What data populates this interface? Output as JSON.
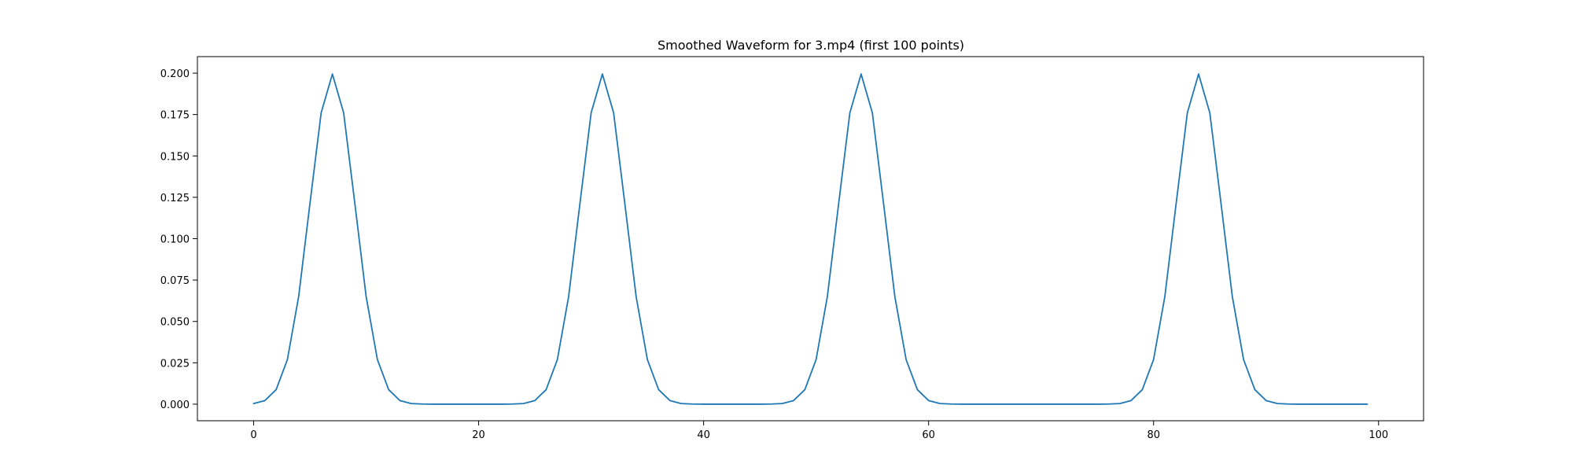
{
  "chart_data": {
    "type": "line",
    "title": "Smoothed Waveform for 3.mp4 (first 100 points)",
    "xlabel": "",
    "ylabel": "",
    "xlim": [
      -5,
      104
    ],
    "ylim": [
      -0.01,
      0.21
    ],
    "xticks": [
      0,
      20,
      40,
      60,
      80,
      100
    ],
    "xtick_labels": [
      "0",
      "20",
      "40",
      "60",
      "80",
      "100"
    ],
    "yticks": [
      0.0,
      0.025,
      0.05,
      0.075,
      0.1,
      0.125,
      0.15,
      0.175,
      0.2
    ],
    "ytick_labels": [
      "0.000",
      "0.025",
      "0.050",
      "0.075",
      "0.100",
      "0.125",
      "0.150",
      "0.175",
      "0.200"
    ],
    "grid": false,
    "legend": "none",
    "line_color": "#1f77b4",
    "series": [
      {
        "x": [
          0,
          1,
          2,
          3,
          4,
          5,
          6,
          7,
          8,
          9,
          10,
          11,
          12,
          13,
          14,
          15,
          16,
          17,
          18,
          19,
          20,
          21,
          22,
          23,
          24,
          25,
          26,
          27,
          28,
          29,
          30,
          31,
          32,
          33,
          34,
          35,
          36,
          37,
          38,
          39,
          40,
          41,
          42,
          43,
          44,
          45,
          46,
          47,
          48,
          49,
          50,
          51,
          52,
          53,
          54,
          55,
          56,
          57,
          58,
          59,
          60,
          61,
          62,
          63,
          64,
          65,
          66,
          67,
          68,
          69,
          70,
          71,
          72,
          73,
          74,
          75,
          76,
          77,
          78,
          79,
          80,
          81,
          82,
          83,
          84,
          85,
          86,
          87,
          88,
          89,
          90,
          91,
          92,
          93,
          94,
          95,
          96,
          97,
          98,
          99
        ],
        "y": [
          0.0004,
          0.0022,
          0.0088,
          0.027,
          0.065,
          0.121,
          0.176,
          0.1995,
          0.176,
          0.121,
          0.065,
          0.027,
          0.0088,
          0.0022,
          0.0004,
          0.0001,
          0.0,
          0.0,
          0.0,
          0.0,
          0.0,
          0.0,
          0.0,
          0.0001,
          0.0004,
          0.0022,
          0.0088,
          0.027,
          0.065,
          0.121,
          0.176,
          0.1995,
          0.176,
          0.121,
          0.065,
          0.027,
          0.0088,
          0.0022,
          0.0004,
          0.0001,
          0.0,
          0.0,
          0.0,
          0.0,
          0.0,
          0.0,
          0.0001,
          0.0004,
          0.0022,
          0.0088,
          0.027,
          0.065,
          0.121,
          0.176,
          0.1995,
          0.176,
          0.121,
          0.065,
          0.027,
          0.0088,
          0.0022,
          0.0004,
          0.0001,
          0.0,
          0.0,
          0.0,
          0.0,
          0.0,
          0.0,
          0.0,
          0.0,
          0.0,
          0.0,
          0.0,
          0.0,
          0.0,
          0.0001,
          0.0004,
          0.0022,
          0.0088,
          0.027,
          0.065,
          0.121,
          0.176,
          0.1995,
          0.176,
          0.121,
          0.065,
          0.027,
          0.0088,
          0.0022,
          0.0004,
          0.0001,
          0.0,
          0.0,
          0.0,
          0.0,
          0.0,
          0.0,
          0.0
        ]
      }
    ]
  }
}
